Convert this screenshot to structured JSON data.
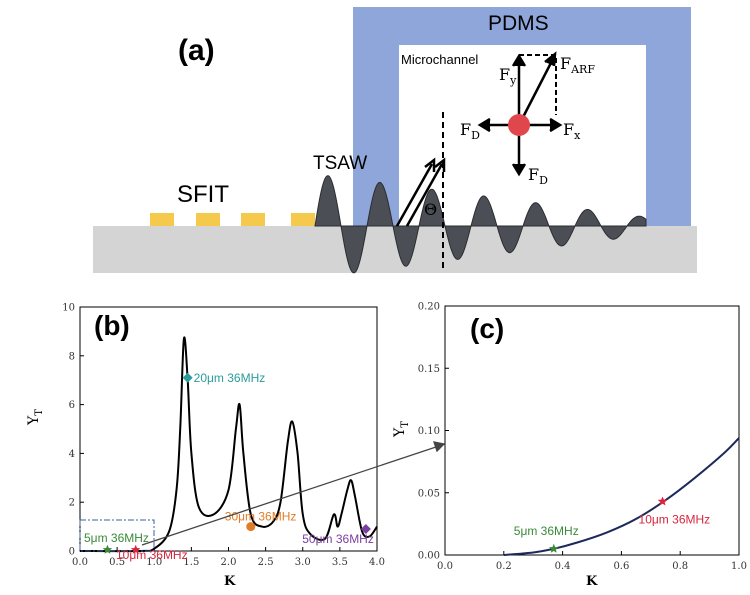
{
  "panel_a": {
    "label": "(a)",
    "pdms": "PDMS",
    "microchannel": "Microchannel",
    "sfit": "SFIT",
    "tsaw": "TSAW",
    "theta": "Θ",
    "forces": {
      "fy": "F",
      "fy_sub": "y",
      "farf": "F",
      "farf_sub": "ARF",
      "fd_left": "F",
      "fd_left_sub": "D",
      "fx": "F",
      "fx_sub": "x",
      "fd_down": "F",
      "fd_down_sub": "D"
    },
    "colors": {
      "pdms": "#8ea6d9",
      "substrate": "#d4d4d4",
      "electrode": "#f5c94b",
      "wave": "#4b4f55",
      "particle": "#e0474c"
    }
  },
  "chart_data": [
    {
      "id": "b",
      "type": "line",
      "panel_label": "(b)",
      "xlabel": "K",
      "ylabel": "Y",
      "ylabel_sub": "T",
      "xlim": [
        0,
        4.0
      ],
      "ylim": [
        0,
        10
      ],
      "x_ticks": [
        "0.0",
        "0.5",
        "1.0",
        "1.5",
        "2.0",
        "2.5",
        "3.0",
        "3.5",
        "4.0"
      ],
      "y_ticks": [
        "0",
        "2",
        "4",
        "6",
        "8",
        "10"
      ],
      "series": [
        {
          "name": "Y_T",
          "color": "#000000",
          "x": [
            0.0,
            0.8,
            1.0,
            1.2,
            1.3,
            1.35,
            1.4,
            1.45,
            1.5,
            1.6,
            1.8,
            2.0,
            2.1,
            2.15,
            2.2,
            2.3,
            2.45,
            2.6,
            2.7,
            2.8,
            2.86,
            2.93,
            3.0,
            3.1,
            3.3,
            3.42,
            3.47,
            3.52,
            3.6,
            3.65,
            3.7,
            3.8,
            3.9,
            4.0
          ],
          "y": [
            0.0,
            0.0,
            0.1,
            0.8,
            2.5,
            5.0,
            8.7,
            7.0,
            4.0,
            1.8,
            1.5,
            2.5,
            5.0,
            6.0,
            4.0,
            1.5,
            1.0,
            1.2,
            2.0,
            4.5,
            5.3,
            4.0,
            1.5,
            0.7,
            0.5,
            1.5,
            1.0,
            1.5,
            2.5,
            2.9,
            2.3,
            0.8,
            0.6,
            1.0
          ]
        }
      ],
      "markers": [
        {
          "label": "5μm 36MHz",
          "x": 0.37,
          "y": 0.05,
          "shape": "star",
          "color": "#3a8a3a"
        },
        {
          "label": "10μm 36MHz",
          "x": 0.75,
          "y": 0.05,
          "shape": "star",
          "color": "#d7263d"
        },
        {
          "label": "20μm 36MHz",
          "x": 1.45,
          "y": 7.1,
          "shape": "diamond",
          "color": "#2a9d9a"
        },
        {
          "label": "30μm 36MHz",
          "x": 2.3,
          "y": 1.0,
          "shape": "circle",
          "color": "#e07b28"
        },
        {
          "label": "50μm 36MHz",
          "x": 3.85,
          "y": 0.9,
          "shape": "diamond",
          "color": "#7b3fa0"
        }
      ]
    },
    {
      "id": "c",
      "type": "line",
      "panel_label": "(c)",
      "xlabel": "K",
      "ylabel": "Y",
      "ylabel_sub": "T",
      "xlim": [
        0,
        1.0
      ],
      "ylim": [
        0,
        0.2
      ],
      "x_ticks": [
        "0.0",
        "0.2",
        "0.4",
        "0.6",
        "0.8",
        "1.0"
      ],
      "y_ticks": [
        "0.00",
        "0.05",
        "0.10",
        "0.15",
        "0.20"
      ],
      "series": [
        {
          "name": "Y_T",
          "color": "#1b2a5a",
          "x": [
            0.2,
            0.3,
            0.37,
            0.45,
            0.55,
            0.65,
            0.75,
            0.85,
            0.95,
            1.0
          ],
          "y": [
            0.0,
            0.002,
            0.005,
            0.01,
            0.018,
            0.029,
            0.044,
            0.062,
            0.082,
            0.094
          ]
        }
      ],
      "markers": [
        {
          "label": "5μm 36MHz",
          "x": 0.37,
          "y": 0.005,
          "shape": "star",
          "color": "#3a8a3a"
        },
        {
          "label": "10μm 36MHz",
          "x": 0.74,
          "y": 0.043,
          "shape": "star",
          "color": "#d7263d"
        }
      ]
    }
  ]
}
